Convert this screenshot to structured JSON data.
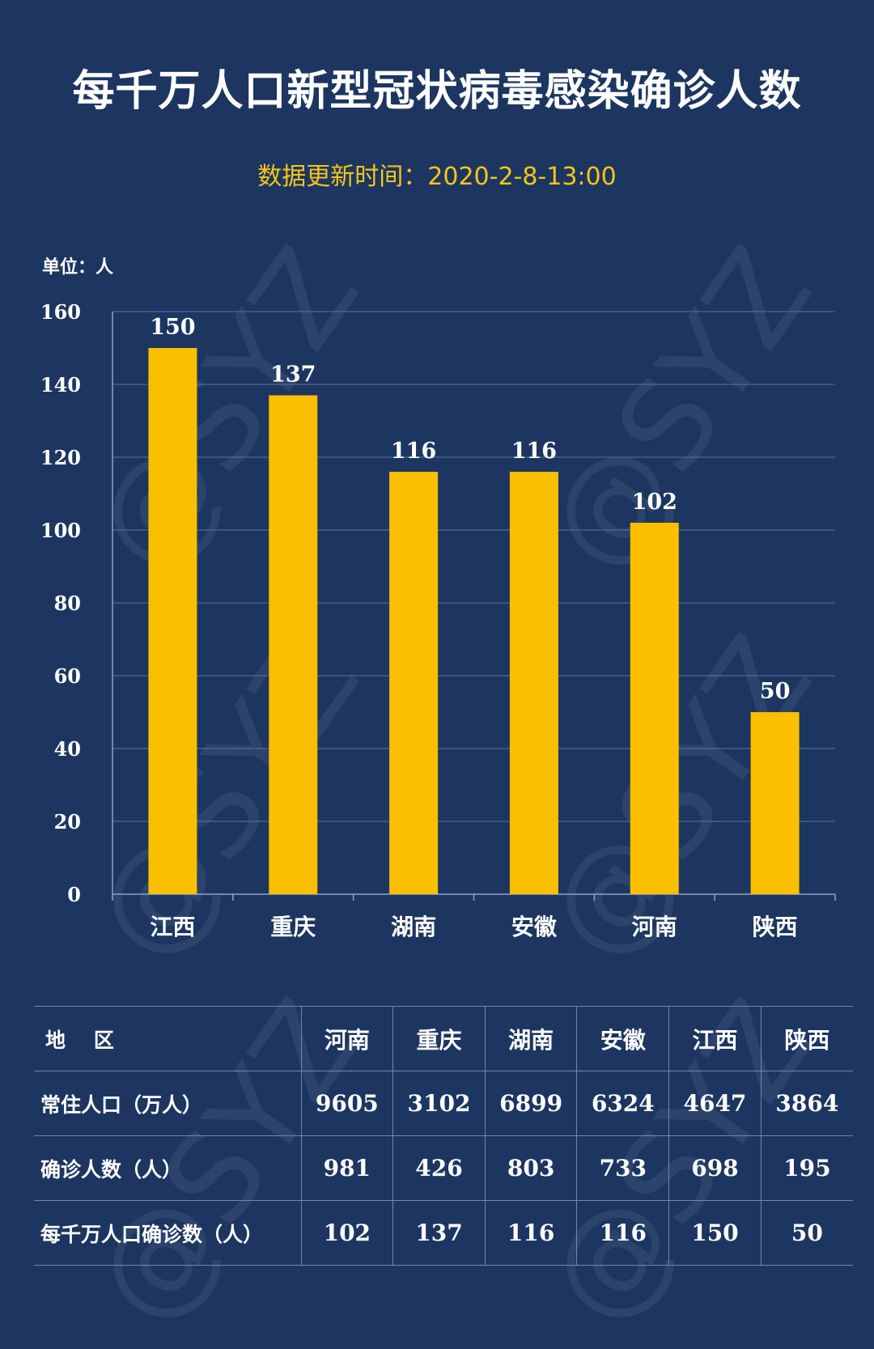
{
  "title": "每千万人口新型冠状病毒感染确诊人数",
  "subtitle": "数据更新时间：2020-2-8-13:00",
  "unit_label": "单位：人",
  "watermark": "@SYZ",
  "colors": {
    "background": "#1c3661",
    "bar": "#f9bf00",
    "subtitle": "#f5c518",
    "grid": "#5c74a0"
  },
  "chart_data": {
    "type": "bar",
    "categories": [
      "江西",
      "重庆",
      "湖南",
      "安徽",
      "河南",
      "陕西"
    ],
    "values": [
      150,
      137,
      116,
      116,
      102,
      50
    ],
    "ylim": [
      0,
      160
    ],
    "yticks": [
      0,
      20,
      40,
      60,
      80,
      100,
      120,
      140,
      160
    ],
    "data_labels": true,
    "grid": true
  },
  "table": {
    "header_label": "地    区",
    "regions": [
      "河南",
      "重庆",
      "湖南",
      "安徽",
      "江西",
      "陕西"
    ],
    "rows": [
      {
        "label": "常住人口（万人）",
        "values": [
          "9605",
          "3102",
          "6899",
          "6324",
          "4647",
          "3864"
        ]
      },
      {
        "label": "确诊人数（人）",
        "values": [
          "981",
          "426",
          "803",
          "733",
          "698",
          "195"
        ]
      },
      {
        "label": "每千万人口确诊数（人）",
        "values": [
          "102",
          "137",
          "116",
          "116",
          "150",
          "50"
        ]
      }
    ]
  }
}
